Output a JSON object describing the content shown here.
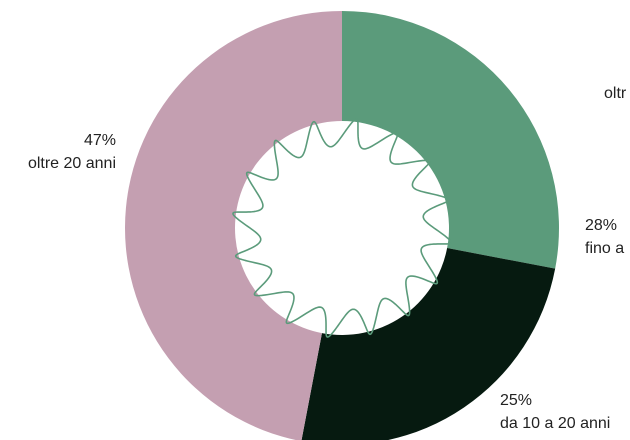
{
  "chart_data": {
    "type": "pie",
    "variant": "donut",
    "slices": [
      {
        "percent_label": "28%",
        "category": "fino a",
        "value": 28,
        "color": "#5b9b7b"
      },
      {
        "percent_label": "25%",
        "category": "da 10 a 20 anni",
        "value": 25,
        "color": "#061a10"
      },
      {
        "percent_label": "47%",
        "category": "oltre 20 anni",
        "value": 47,
        "color": "#c49fb1"
      }
    ],
    "extra_label": "oltr",
    "legend": "none"
  }
}
